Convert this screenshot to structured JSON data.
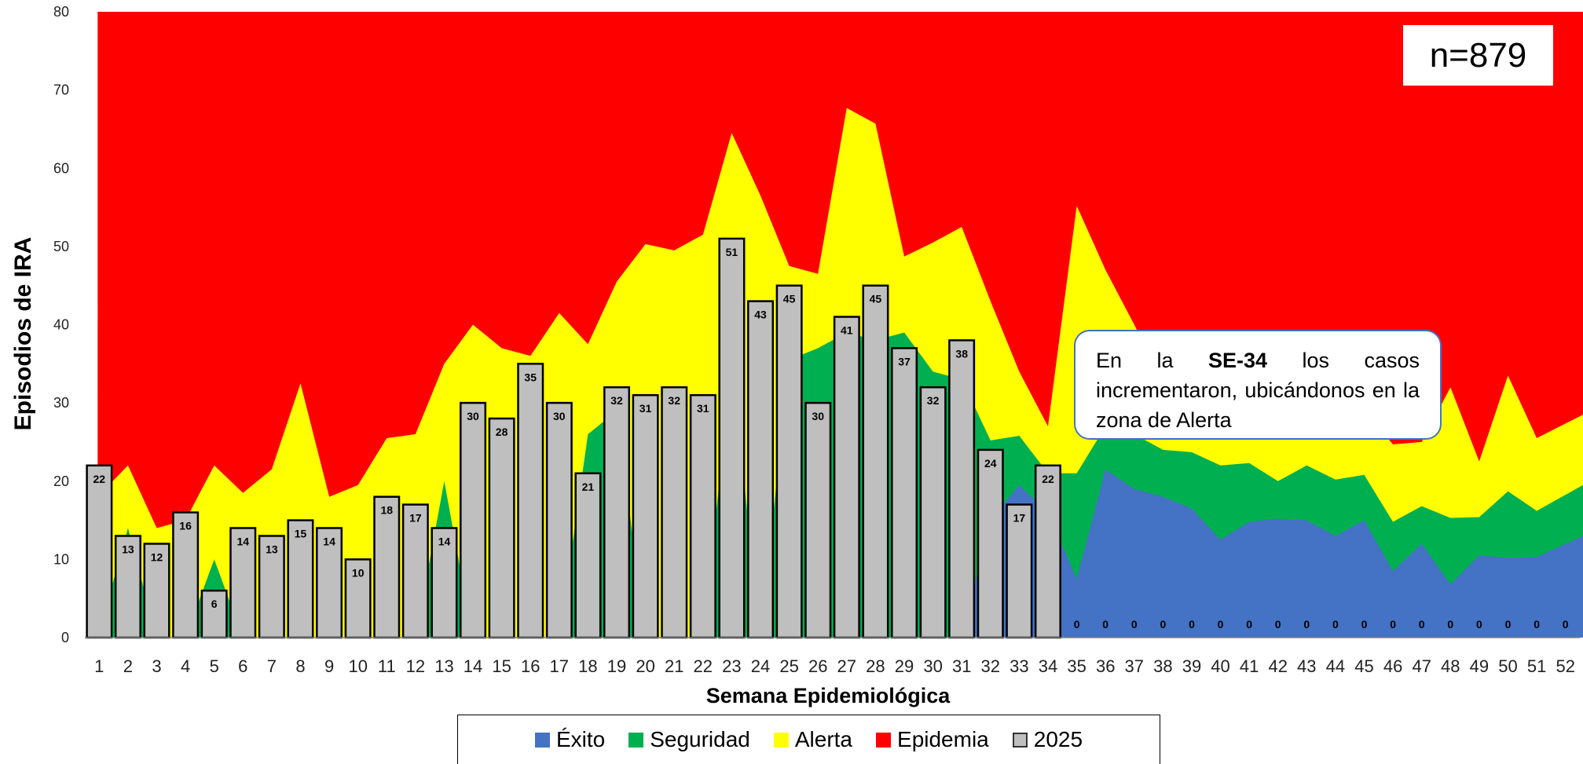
{
  "chart_data": {
    "type": "bar",
    "title": "",
    "ylabel": "Episodios de IRA",
    "xlabel": "Semana Epidemiológica",
    "ylim": [
      0,
      80
    ],
    "yticks": [
      0,
      10,
      20,
      30,
      40,
      50,
      60,
      70,
      80
    ],
    "x": [
      1,
      2,
      3,
      4,
      5,
      6,
      7,
      8,
      9,
      10,
      11,
      12,
      13,
      14,
      15,
      16,
      17,
      18,
      19,
      20,
      21,
      22,
      23,
      24,
      25,
      26,
      27,
      28,
      29,
      30,
      31,
      32,
      33,
      34,
      35,
      36,
      37,
      38,
      39,
      40,
      41,
      42,
      43,
      44,
      45,
      46,
      47,
      48,
      49,
      50,
      51,
      52
    ],
    "bars": {
      "name": "2025",
      "color": "#bfbfbf",
      "values": [
        22,
        13,
        12,
        16,
        6,
        14,
        13,
        15,
        14,
        10,
        18,
        17,
        14,
        30,
        28,
        35,
        30,
        21,
        32,
        31,
        32,
        31,
        51,
        43,
        45,
        30,
        41,
        45,
        37,
        32,
        38,
        24,
        17,
        22,
        0,
        0,
        0,
        0,
        0,
        0,
        0,
        0,
        0,
        0,
        0,
        0,
        0,
        0,
        0,
        0,
        0,
        0
      ]
    },
    "zones": [
      {
        "name": "Éxito",
        "color": "#4472c4",
        "values": [
          0,
          0,
          0,
          0,
          0,
          0,
          0,
          0,
          0,
          0,
          0,
          0,
          0,
          0,
          0,
          0,
          0,
          0,
          0,
          0,
          0,
          0,
          0,
          0,
          0,
          0,
          0,
          0,
          0,
          0,
          0,
          15,
          19.5,
          16,
          7.5,
          21.5,
          19,
          18,
          16.5,
          12.5,
          14.8,
          15.2,
          15,
          13,
          15,
          8.5,
          12,
          6.8,
          10.5,
          10.2,
          10.3,
          13
        ]
      },
      {
        "name": "Seguridad",
        "color": "#00b050",
        "values": [
          0,
          14,
          0,
          0,
          10,
          0,
          0,
          0,
          0,
          0,
          0,
          0,
          20,
          0,
          0,
          0,
          0,
          26,
          29,
          0,
          0,
          0,
          35,
          0,
          35.5,
          37,
          39,
          38,
          39,
          34,
          33,
          25.2,
          25.8,
          21,
          21,
          27,
          26,
          24,
          23.7,
          22,
          22.3,
          20,
          22,
          20.2,
          20.8,
          14.8,
          16.8,
          15.3,
          15.4,
          18.7,
          16.2,
          19.5
        ]
      },
      {
        "name": "Alerta",
        "color": "#ffff00",
        "values": [
          18,
          22,
          14,
          15,
          22,
          18.5,
          21.5,
          32.5,
          18,
          19.5,
          25.5,
          26,
          35,
          40,
          37,
          36,
          41.5,
          37.5,
          45.5,
          50.3,
          49.5,
          51.5,
          64.5,
          56.5,
          47.5,
          46.5,
          67.7,
          65.7,
          48.7,
          50.5,
          52.5,
          43,
          34,
          27,
          55.2,
          47,
          40,
          32.5,
          28,
          27.5,
          29,
          29,
          29,
          29,
          29,
          24.7,
          25,
          32,
          22.5,
          33.5,
          25.5,
          28.5
        ]
      },
      {
        "name": "Epidemia",
        "color": "#ff0000",
        "values": [
          80,
          80,
          80,
          80,
          80,
          80,
          80,
          80,
          80,
          80,
          80,
          80,
          80,
          80,
          80,
          80,
          80,
          80,
          80,
          80,
          80,
          80,
          80,
          80,
          80,
          80,
          80,
          80,
          80,
          80,
          80,
          80,
          80,
          80,
          80,
          80,
          80,
          80,
          80,
          80,
          80,
          80,
          80,
          80,
          80,
          80,
          80,
          80,
          80,
          80,
          80,
          80
        ]
      }
    ],
    "legend": [
      "Éxito",
      "Seguridad",
      "Alerta",
      "Epidemia",
      "2025"
    ],
    "legend_position": "bottom",
    "grid": false
  },
  "annotations": {
    "n_label": "n=879",
    "callout_prefix": "En la ",
    "callout_bold": "SE-34",
    "callout_suffix": " los casos incrementaron, ubicándonos en la zona de Alerta"
  }
}
